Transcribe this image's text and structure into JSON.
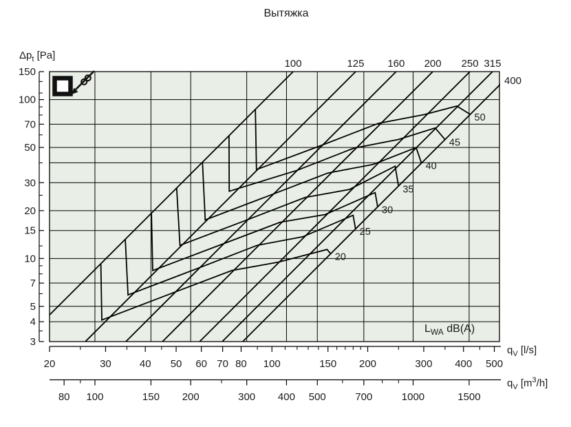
{
  "chart_data": {
    "type": "line",
    "title": "Вытяжка",
    "plot_background": "#e9efe6",
    "line_color": "#000000",
    "y_axis": {
      "label": {
        "main": "Δp",
        "sub": "t",
        "unit": " [Pa]"
      },
      "major_ticks": [
        150,
        100,
        70,
        50,
        30,
        20,
        15,
        10,
        7,
        5,
        4,
        3
      ],
      "minor_ticks": [
        130,
        110,
        90,
        80,
        60,
        40,
        25,
        12,
        9,
        8,
        6,
        3.5
      ],
      "range": [
        3,
        150
      ],
      "scale": "log"
    },
    "x_axis_ls": {
      "label": {
        "main": "q",
        "sub": "V",
        "unit": " [l/s]"
      },
      "major_ticks": [
        20,
        30,
        40,
        50,
        60,
        70,
        80,
        100,
        150,
        200,
        300,
        400,
        500
      ],
      "minor_ticks": [
        25,
        35,
        45,
        90,
        110,
        120,
        130,
        140,
        160,
        170,
        180,
        190,
        250,
        350,
        450
      ],
      "range": [
        20,
        500
      ],
      "scale": "log"
    },
    "x_axis_m3h": {
      "label": {
        "main": "q",
        "sub": "V",
        "unit_pre": " [m",
        "sup": "3",
        "unit_post": "/h]"
      },
      "major_ticks": [
        80,
        100,
        150,
        200,
        300,
        400,
        500,
        700,
        1000,
        1500
      ],
      "minor_ticks": [
        90,
        250,
        600,
        800,
        900
      ],
      "scale": "log"
    },
    "grid": {
      "horizontal_pa": [
        100,
        70,
        50,
        40,
        30,
        20,
        15,
        10,
        7,
        5,
        4
      ],
      "vertical_m3h": [
        100,
        150,
        200,
        300,
        400,
        500,
        700,
        1000,
        1500
      ]
    },
    "diameter_lines": [
      {
        "label": "100",
        "q_at_150pa": 116.6
      },
      {
        "label": "125",
        "q_at_150pa": 183.3
      },
      {
        "label": "160",
        "q_at_150pa": 245.7
      },
      {
        "label": "200",
        "q_at_150pa": 320.3
      },
      {
        "label": "250",
        "q_at_150pa": 419.1
      },
      {
        "label": "315",
        "q_at_150pa": 493.5
      },
      {
        "label": "400",
        "q_at_150pa": 572.5
      }
    ],
    "noise_curves": [
      {
        "label": "20",
        "points": [
          [
            29.0,
            9.3
          ],
          [
            29.2,
            4.1
          ],
          [
            49.1,
            6.1
          ],
          [
            74.8,
            8.4
          ],
          [
            105,
            9.5
          ],
          [
            149,
            11.4
          ],
          [
            153,
            10.7
          ]
        ]
      },
      {
        "label": "25",
        "points": [
          [
            34.6,
            13.2
          ],
          [
            35.3,
            5.9
          ],
          [
            58.7,
            8.7
          ],
          [
            89.9,
            12.1
          ],
          [
            125,
            13.7
          ],
          [
            180,
            18.7
          ],
          [
            183,
            15.4
          ]
        ]
      },
      {
        "label": "30",
        "points": [
          [
            41.8,
            19.3
          ],
          [
            42.2,
            8.4
          ],
          [
            69.7,
            12.3
          ],
          [
            106,
            16.9
          ],
          [
            147,
            18.9
          ],
          [
            211,
            26.0
          ],
          [
            215,
            21.1
          ]
        ]
      },
      {
        "label": "35",
        "points": [
          [
            50.2,
            27.8
          ],
          [
            51.4,
            12.1
          ],
          [
            83.5,
            17.5
          ],
          [
            127,
            24.2
          ],
          [
            175,
            27.2
          ],
          [
            244,
            38.1
          ],
          [
            250,
            28.5
          ]
        ]
      },
      {
        "label": "40",
        "points": [
          [
            60.5,
            40.4
          ],
          [
            61.7,
            17.5
          ],
          [
            99.7,
            25.2
          ],
          [
            150,
            34.5
          ],
          [
            208,
            39.1
          ],
          [
            284,
            49.9
          ],
          [
            295,
            39.9
          ]
        ]
      },
      {
        "label": "45",
        "points": [
          [
            73.3,
            59.3
          ],
          [
            73.4,
            26.5
          ],
          [
            120,
            35.9
          ],
          [
            181,
            49.5
          ],
          [
            250,
            56.1
          ],
          [
            326,
            66.3
          ],
          [
            350,
            56.0
          ]
        ]
      },
      {
        "label": "50",
        "points": [
          [
            88.7,
            86.8
          ],
          [
            89.4,
            36.3
          ],
          [
            143,
            51.5
          ],
          [
            216,
            70.9
          ],
          [
            301,
            80.5
          ],
          [
            381,
            91.1
          ],
          [
            420,
            80.7
          ]
        ]
      }
    ],
    "legend_text": {
      "main": "L",
      "sub": "WA",
      "unit": " dB(A)"
    },
    "icon": {
      "name": "exhaust-air-valve-symbol"
    }
  }
}
